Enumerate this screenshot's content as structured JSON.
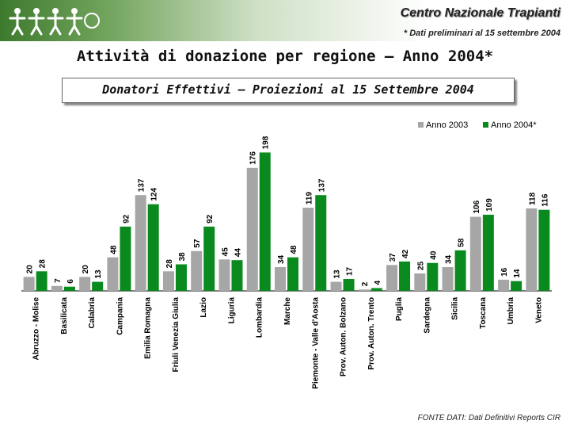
{
  "header": {
    "org_title": "Centro Nazionale Trapianti",
    "note": "* Dati preliminari al 15 settembre 2004"
  },
  "page_title": "Attività di donazione per regione – Anno 2004*",
  "source_note": "FONTE DATI: Dati Definitivi Reports CIR",
  "colors": {
    "series_2003": "#a6a6a6",
    "series_2004": "#0a8a1e",
    "header_green": "#3e7a2e"
  },
  "chart_data": {
    "type": "bar",
    "title": "Donatori Effettivi – Proiezioni al 15 Settembre 2004",
    "xlabel": "",
    "ylabel": "",
    "ylim": [
      0,
      220
    ],
    "legend_position": "top-right",
    "categories": [
      "Abruzzo - Molise",
      "Basilicata",
      "Calabria",
      "Campania",
      "Emilia Romagna",
      "Friuli Venezia Giulia",
      "Lazio",
      "Liguria",
      "Lombardia",
      "Marche",
      "Piemonte - Valle d'Aosta",
      "Prov. Auton. Bolzano",
      "Prov. Auton. Trento",
      "Puglia",
      "Sardegna",
      "Sicilia",
      "Toscana",
      "Umbria",
      "Veneto"
    ],
    "series": [
      {
        "name": "Anno 2003",
        "values": [
          20,
          7,
          20,
          48,
          137,
          28,
          57,
          45,
          176,
          34,
          119,
          13,
          2,
          37,
          25,
          34,
          106,
          16,
          118
        ]
      },
      {
        "name": "Anno 2004*",
        "values": [
          28,
          6,
          13,
          92,
          124,
          38,
          92,
          44,
          198,
          48,
          137,
          17,
          4,
          42,
          40,
          58,
          109,
          14,
          116
        ]
      }
    ]
  }
}
